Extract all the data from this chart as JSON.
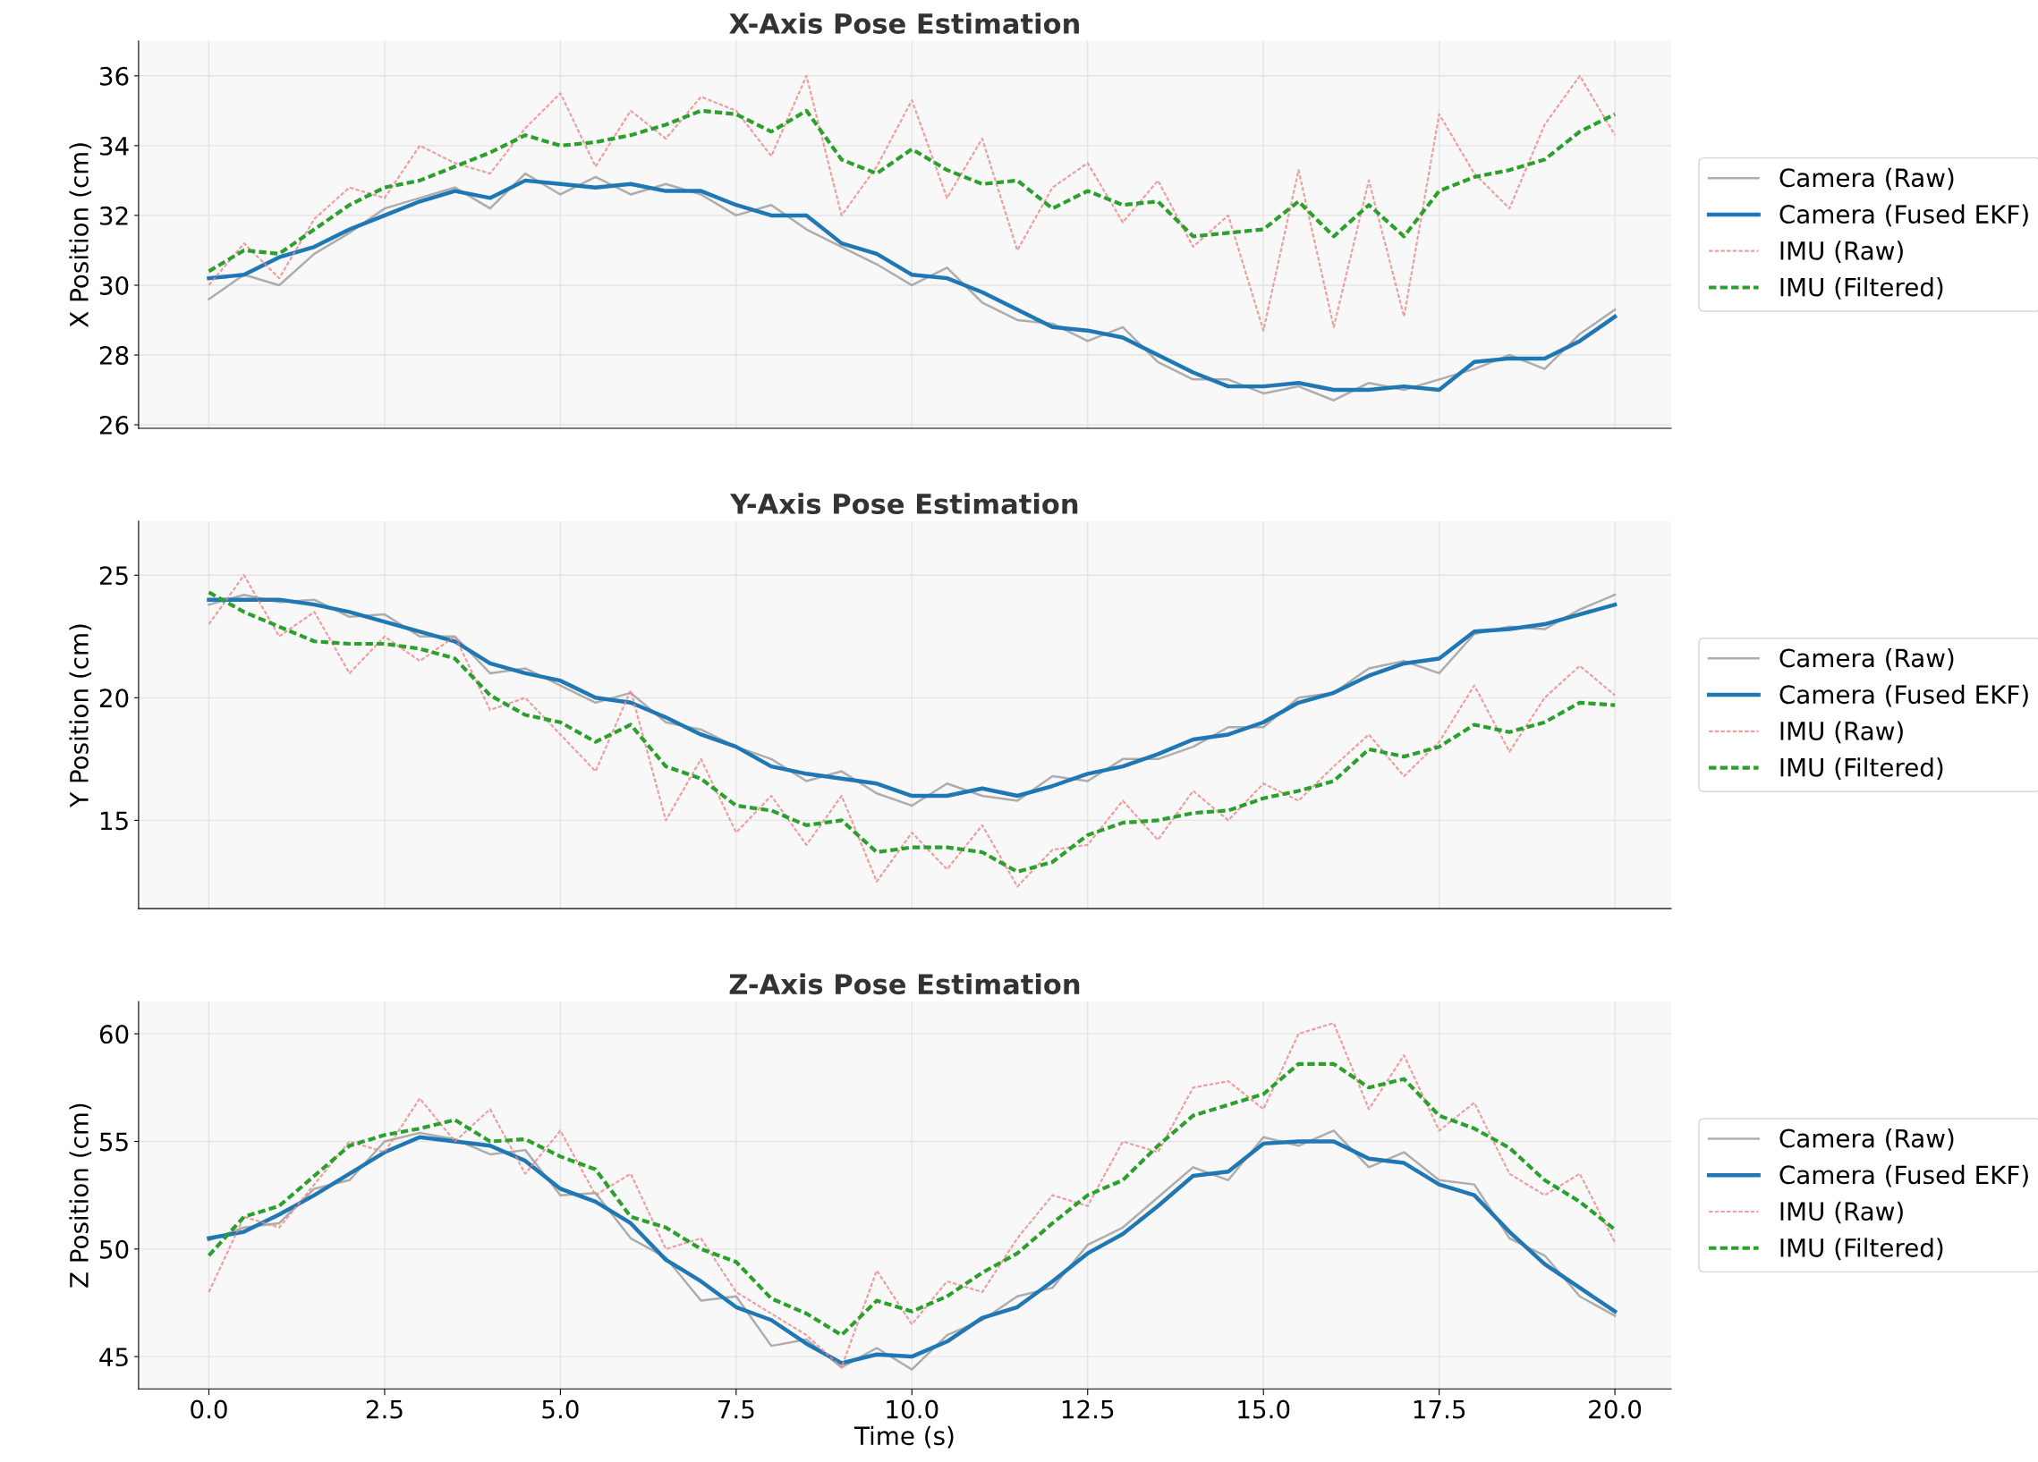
{
  "chart_data": [
    {
      "type": "line",
      "title": "X-Axis Pose Estimation",
      "ylabel": "X Position (cm)",
      "xlim": [
        -1,
        20.8
      ],
      "ylim": [
        25.9,
        37
      ],
      "yticks": [
        26,
        28,
        30,
        32,
        34,
        36
      ],
      "tick_labels": "y",
      "grid": true,
      "legend": "right",
      "x": [
        0,
        0.5,
        1,
        1.5,
        2,
        2.5,
        3,
        3.5,
        4,
        4.5,
        5,
        5.5,
        6,
        6.5,
        7,
        7.5,
        8,
        8.5,
        9,
        9.5,
        10,
        10.5,
        11,
        11.5,
        12,
        12.5,
        13,
        13.5,
        14,
        14.5,
        15,
        15.5,
        16,
        16.5,
        17,
        17.5,
        18,
        18.5,
        19,
        19.5,
        20
      ],
      "series": [
        {
          "name": "Camera (Raw)",
          "color": "#a0a0a0",
          "line_style": "solid",
          "values": [
            29.6,
            30.3,
            30.0,
            30.9,
            31.5,
            32.2,
            32.5,
            32.8,
            32.2,
            33.2,
            32.6,
            33.1,
            32.6,
            32.9,
            32.6,
            32.0,
            32.3,
            31.6,
            31.1,
            30.6,
            30.0,
            30.5,
            29.5,
            29.0,
            28.9,
            28.4,
            28.8,
            27.8,
            27.3,
            27.3,
            26.9,
            27.1,
            26.7,
            27.2,
            27.0,
            27.3,
            27.6,
            28.0,
            27.6,
            28.6,
            29.3
          ]
        },
        {
          "name": "Camera (Fused EKF)",
          "color": "#1f77b4",
          "line_style": "solid",
          "values": [
            30.2,
            30.3,
            30.8,
            31.1,
            31.6,
            32.0,
            32.4,
            32.7,
            32.5,
            33.0,
            32.9,
            32.8,
            32.9,
            32.7,
            32.7,
            32.3,
            32.0,
            32.0,
            31.2,
            30.9,
            30.3,
            30.2,
            29.8,
            29.3,
            28.8,
            28.7,
            28.5,
            28.0,
            27.5,
            27.1,
            27.1,
            27.2,
            27.0,
            27.0,
            27.1,
            27.0,
            27.8,
            27.9,
            27.9,
            28.4,
            29.1
          ]
        },
        {
          "name": "IMU (Raw)",
          "color": "#e88a8a",
          "line_style": "dashed",
          "values": [
            30.0,
            31.2,
            30.2,
            31.9,
            32.8,
            32.5,
            34.0,
            33.5,
            33.2,
            34.5,
            35.5,
            33.4,
            35.0,
            34.2,
            35.4,
            35.0,
            33.7,
            36.0,
            32.0,
            33.4,
            35.3,
            32.5,
            34.2,
            31.0,
            32.8,
            33.5,
            31.8,
            33.0,
            31.1,
            32.0,
            28.7,
            33.3,
            28.8,
            33.0,
            29.1,
            34.9,
            33.2,
            32.2,
            34.6,
            36.0,
            34.3
          ]
        },
        {
          "name": "IMU (Filtered)",
          "color": "#2ca02c",
          "line_style": "dashed",
          "values": [
            30.4,
            31.0,
            30.9,
            31.6,
            32.3,
            32.8,
            33.0,
            33.4,
            33.8,
            34.3,
            34.0,
            34.1,
            34.3,
            34.6,
            35.0,
            34.9,
            34.4,
            35.0,
            33.6,
            33.2,
            33.9,
            33.3,
            32.9,
            33.0,
            32.2,
            32.7,
            32.3,
            32.4,
            31.4,
            31.5,
            31.6,
            32.4,
            31.4,
            32.3,
            31.4,
            32.7,
            33.1,
            33.3,
            33.6,
            34.4,
            34.9
          ]
        }
      ]
    },
    {
      "type": "line",
      "title": "Y-Axis Pose Estimation",
      "ylabel": "Y Position (cm)",
      "xlim": [
        -1,
        20.8
      ],
      "ylim": [
        11.4,
        27.2
      ],
      "yticks": [
        15,
        20,
        25
      ],
      "tick_labels": "y",
      "grid": true,
      "legend": "right",
      "x": [
        0,
        0.5,
        1,
        1.5,
        2,
        2.5,
        3,
        3.5,
        4,
        4.5,
        5,
        5.5,
        6,
        6.5,
        7,
        7.5,
        8,
        8.5,
        9,
        9.5,
        10,
        10.5,
        11,
        11.5,
        12,
        12.5,
        13,
        13.5,
        14,
        14.5,
        15,
        15.5,
        16,
        16.5,
        17,
        17.5,
        18,
        18.5,
        19,
        19.5,
        20
      ],
      "series": [
        {
          "name": "Camera (Raw)",
          "color": "#a0a0a0",
          "line_style": "solid",
          "values": [
            23.8,
            24.2,
            23.9,
            24.0,
            23.3,
            23.4,
            22.5,
            22.5,
            21.0,
            21.2,
            20.5,
            19.8,
            20.2,
            19.0,
            18.7,
            18.0,
            17.5,
            16.6,
            17.0,
            16.1,
            15.6,
            16.5,
            16.0,
            15.8,
            16.8,
            16.6,
            17.5,
            17.5,
            18.0,
            18.8,
            18.8,
            20.0,
            20.2,
            21.2,
            21.5,
            21.0,
            22.6,
            22.9,
            22.8,
            23.6,
            24.2
          ]
        },
        {
          "name": "Camera (Fused EKF)",
          "color": "#1f77b4",
          "line_style": "solid",
          "values": [
            24.0,
            24.0,
            24.0,
            23.8,
            23.5,
            23.1,
            22.7,
            22.3,
            21.4,
            21.0,
            20.7,
            20.0,
            19.8,
            19.2,
            18.5,
            18.0,
            17.2,
            16.9,
            16.7,
            16.5,
            16.0,
            16.0,
            16.3,
            16.0,
            16.4,
            16.9,
            17.2,
            17.7,
            18.3,
            18.5,
            19.0,
            19.8,
            20.2,
            20.9,
            21.4,
            21.6,
            22.7,
            22.8,
            23.0,
            23.4,
            23.8
          ]
        },
        {
          "name": "IMU (Raw)",
          "color": "#e88a8a",
          "line_style": "dashed",
          "values": [
            23.0,
            25.0,
            22.5,
            23.5,
            21.0,
            22.5,
            21.5,
            22.5,
            19.5,
            20.0,
            18.5,
            17.0,
            20.3,
            15.0,
            17.5,
            14.5,
            16.0,
            14.0,
            16.0,
            12.5,
            14.5,
            13.0,
            14.8,
            12.3,
            13.8,
            14.0,
            15.8,
            14.2,
            16.2,
            15.0,
            16.5,
            15.8,
            17.2,
            18.5,
            16.8,
            18.2,
            20.5,
            17.8,
            20.0,
            21.3,
            20.1
          ]
        },
        {
          "name": "IMU (Filtered)",
          "color": "#2ca02c",
          "line_style": "dashed",
          "values": [
            24.3,
            23.5,
            22.9,
            22.3,
            22.2,
            22.2,
            22.0,
            21.6,
            20.1,
            19.3,
            19.0,
            18.2,
            18.9,
            17.2,
            16.7,
            15.6,
            15.4,
            14.8,
            15.0,
            13.7,
            13.9,
            13.9,
            13.7,
            12.9,
            13.3,
            14.4,
            14.9,
            15.0,
            15.3,
            15.4,
            15.9,
            16.2,
            16.6,
            17.9,
            17.6,
            18.0,
            18.9,
            18.6,
            19.0,
            19.8,
            19.7
          ]
        }
      ]
    },
    {
      "type": "line",
      "title": "Z-Axis Pose Estimation",
      "xlabel": "Time (s)",
      "ylabel": "Z Position (cm)",
      "xlim": [
        -1,
        20.8
      ],
      "ylim": [
        43.5,
        61.5
      ],
      "yticks": [
        45,
        50,
        55,
        60
      ],
      "xticks": [
        {
          "value": 0,
          "label": "0.0"
        },
        2.5,
        {
          "value": 5,
          "label": "5.0"
        },
        7.5,
        {
          "value": 10,
          "label": "10.0"
        },
        12.5,
        {
          "value": 15,
          "label": "15.0"
        },
        17.5,
        {
          "value": 20,
          "label": "20.0"
        }
      ],
      "grid": true,
      "legend": "right",
      "x": [
        0,
        0.5,
        1,
        1.5,
        2,
        2.5,
        3,
        3.5,
        4,
        4.5,
        5,
        5.5,
        6,
        6.5,
        7,
        7.5,
        8,
        8.5,
        9,
        9.5,
        10,
        10.5,
        11,
        11.5,
        12,
        12.5,
        13,
        13.5,
        14,
        14.5,
        15,
        15.5,
        16,
        16.5,
        17,
        17.5,
        18,
        18.5,
        19,
        19.5,
        20
      ],
      "series": [
        {
          "name": "Camera (Raw)",
          "color": "#a0a0a0",
          "line_style": "solid",
          "values": [
            50.4,
            51.0,
            51.2,
            52.8,
            53.2,
            55.0,
            55.4,
            55.1,
            54.4,
            54.6,
            52.5,
            52.6,
            50.5,
            49.6,
            47.6,
            47.8,
            45.5,
            45.8,
            44.5,
            45.4,
            44.4,
            46.0,
            46.7,
            47.8,
            48.2,
            50.2,
            51.0,
            52.4,
            53.8,
            53.2,
            55.2,
            54.8,
            55.5,
            53.8,
            54.5,
            53.2,
            53.0,
            50.5,
            49.7,
            47.8,
            46.9
          ]
        },
        {
          "name": "Camera (Fused EKF)",
          "color": "#1f77b4",
          "line_style": "solid",
          "values": [
            50.5,
            50.8,
            51.6,
            52.5,
            53.5,
            54.5,
            55.2,
            55.0,
            54.8,
            54.1,
            52.8,
            52.2,
            51.2,
            49.5,
            48.5,
            47.3,
            46.7,
            45.6,
            44.7,
            45.1,
            45.0,
            45.7,
            46.8,
            47.3,
            48.5,
            49.8,
            50.7,
            52.0,
            53.4,
            53.6,
            54.9,
            55.0,
            55.0,
            54.2,
            54.0,
            53.0,
            52.5,
            50.8,
            49.3,
            48.2,
            47.1
          ]
        },
        {
          "name": "IMU (Raw)",
          "color": "#e88a8a",
          "line_style": "dashed",
          "values": [
            48.0,
            51.5,
            51.0,
            53.0,
            55.0,
            54.5,
            57.0,
            55.0,
            56.5,
            53.5,
            55.5,
            52.5,
            53.5,
            50.0,
            50.5,
            48.0,
            47.0,
            46.0,
            44.5,
            49.0,
            46.5,
            48.5,
            48.0,
            50.5,
            52.5,
            52.0,
            55.0,
            54.5,
            57.5,
            57.8,
            56.5,
            60.0,
            60.5,
            56.5,
            59.0,
            55.5,
            56.8,
            53.5,
            52.5,
            53.5,
            50.3
          ]
        },
        {
          "name": "IMU (Filtered)",
          "color": "#2ca02c",
          "line_style": "dashed",
          "values": [
            49.7,
            51.5,
            52.0,
            53.4,
            54.8,
            55.3,
            55.6,
            56.0,
            55.0,
            55.1,
            54.3,
            53.7,
            51.5,
            51.0,
            50.0,
            49.4,
            47.7,
            47.0,
            46.0,
            47.6,
            47.1,
            47.8,
            48.9,
            49.8,
            51.2,
            52.5,
            53.2,
            54.8,
            56.2,
            56.7,
            57.2,
            58.6,
            58.6,
            57.5,
            57.9,
            56.2,
            55.6,
            54.7,
            53.2,
            52.2,
            50.9
          ]
        }
      ]
    }
  ]
}
